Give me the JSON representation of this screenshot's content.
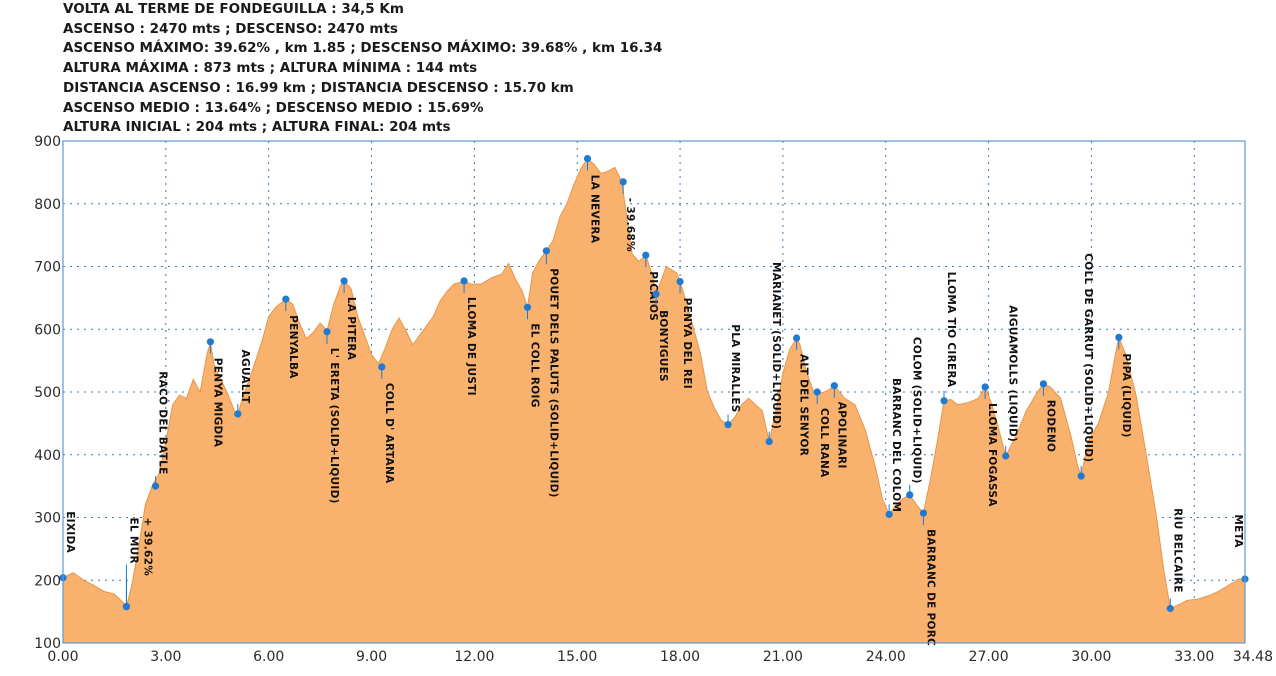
{
  "stats": [
    "VOLTA AL TERME DE FONDEGUILLA  : 34,5 Km",
    "ASCENSO : 2470 mts ; DESCENSO: 2470 mts",
    "ASCENSO MÁXIMO: 39.62% , km 1.85 ; DESCENSO MÁXIMO: 39.68% , km 16.34",
    "ALTURA MÁXIMA : 873 mts ; ALTURA MÍNIMA : 144 mts",
    "DISTANCIA ASCENSO :  16.99 km ; DISTANCIA DESCENSO : 15.70 km",
    "ASCENSO MEDIO : 13.64% ; DESCENSO MEDIO : 15.69%",
    "ALTURA INICIAL : 204 mts ; ALTURA FINAL: 204 mts"
  ],
  "chart_data": {
    "type": "area",
    "xlim": [
      0,
      34.48
    ],
    "ylim": [
      100,
      900
    ],
    "x_ticks": [
      0,
      3,
      6,
      9,
      12,
      15,
      18,
      21,
      24,
      27,
      30,
      33,
      34.48
    ],
    "x_tick_labels": [
      "0.00",
      "3.00",
      "6.00",
      "9.00",
      "12.00",
      "15.00",
      "18.00",
      "21.00",
      "24.00",
      "27.00",
      "30.00",
      "33.00",
      "34.48"
    ],
    "y_ticks": [
      100,
      200,
      300,
      400,
      500,
      600,
      700,
      800,
      900
    ],
    "y_tick_labels": [
      "100",
      "200",
      "300",
      "400",
      "500",
      "600",
      "700",
      "800",
      "900"
    ],
    "grid": true,
    "colors": {
      "fill": "#f9b26e",
      "stroke": "#e8954a",
      "axis": "#5b9bd5",
      "grid": "#3a78b8",
      "marker": "#1f7ad1"
    },
    "profile": [
      [
        0.0,
        204
      ],
      [
        0.3,
        212
      ],
      [
        0.6,
        200
      ],
      [
        0.9,
        192
      ],
      [
        1.2,
        182
      ],
      [
        1.5,
        178
      ],
      [
        1.8,
        162
      ],
      [
        1.85,
        158
      ],
      [
        2.0,
        190
      ],
      [
        2.2,
        250
      ],
      [
        2.4,
        320
      ],
      [
        2.6,
        350
      ],
      [
        2.8,
        370
      ],
      [
        3.0,
        420
      ],
      [
        3.2,
        480
      ],
      [
        3.4,
        495
      ],
      [
        3.6,
        490
      ],
      [
        3.8,
        520
      ],
      [
        4.0,
        500
      ],
      [
        4.2,
        560
      ],
      [
        4.3,
        580
      ],
      [
        4.4,
        545
      ],
      [
        4.6,
        520
      ],
      [
        4.8,
        498
      ],
      [
        5.0,
        470
      ],
      [
        5.1,
        465
      ],
      [
        5.3,
        500
      ],
      [
        5.5,
        530
      ],
      [
        5.8,
        580
      ],
      [
        6.0,
        620
      ],
      [
        6.2,
        635
      ],
      [
        6.5,
        648
      ],
      [
        6.7,
        640
      ],
      [
        6.9,
        610
      ],
      [
        7.1,
        585
      ],
      [
        7.3,
        595
      ],
      [
        7.5,
        610
      ],
      [
        7.7,
        598
      ],
      [
        7.9,
        640
      ],
      [
        8.1,
        670
      ],
      [
        8.2,
        677
      ],
      [
        8.4,
        665
      ],
      [
        8.6,
        620
      ],
      [
        8.8,
        590
      ],
      [
        9.0,
        560
      ],
      [
        9.2,
        545
      ],
      [
        9.4,
        570
      ],
      [
        9.6,
        600
      ],
      [
        9.8,
        618
      ],
      [
        10.0,
        598
      ],
      [
        10.2,
        575
      ],
      [
        10.4,
        590
      ],
      [
        10.6,
        605
      ],
      [
        10.8,
        620
      ],
      [
        11.0,
        645
      ],
      [
        11.2,
        660
      ],
      [
        11.4,
        672
      ],
      [
        11.6,
        675
      ],
      [
        11.7,
        677
      ],
      [
        11.9,
        672
      ],
      [
        12.2,
        672
      ],
      [
        12.5,
        682
      ],
      [
        12.8,
        688
      ],
      [
        13.0,
        705
      ],
      [
        13.2,
        680
      ],
      [
        13.4,
        660
      ],
      [
        13.55,
        635
      ],
      [
        13.7,
        690
      ],
      [
        13.9,
        710
      ],
      [
        14.1,
        725
      ],
      [
        14.3,
        742
      ],
      [
        14.5,
        780
      ],
      [
        14.7,
        800
      ],
      [
        14.9,
        830
      ],
      [
        15.1,
        855
      ],
      [
        15.3,
        872
      ],
      [
        15.5,
        862
      ],
      [
        15.7,
        848
      ],
      [
        15.9,
        852
      ],
      [
        16.1,
        858
      ],
      [
        16.3,
        835
      ],
      [
        16.6,
        720
      ],
      [
        16.8,
        708
      ],
      [
        17.0,
        718
      ],
      [
        17.2,
        685
      ],
      [
        17.3,
        656
      ],
      [
        17.6,
        700
      ],
      [
        17.9,
        690
      ],
      [
        18.0,
        676
      ],
      [
        18.2,
        640
      ],
      [
        18.4,
        600
      ],
      [
        18.6,
        560
      ],
      [
        18.8,
        500
      ],
      [
        19.0,
        475
      ],
      [
        19.2,
        455
      ],
      [
        19.4,
        448
      ],
      [
        19.6,
        460
      ],
      [
        19.8,
        480
      ],
      [
        20.0,
        490
      ],
      [
        20.2,
        480
      ],
      [
        20.4,
        470
      ],
      [
        20.6,
        421
      ],
      [
        20.8,
        470
      ],
      [
        21.0,
        530
      ],
      [
        21.2,
        568
      ],
      [
        21.4,
        586
      ],
      [
        21.5,
        575
      ],
      [
        21.7,
        530
      ],
      [
        21.9,
        500
      ],
      [
        22.1,
        498
      ],
      [
        22.3,
        502
      ],
      [
        22.5,
        510
      ],
      [
        22.8,
        490
      ],
      [
        23.1,
        480
      ],
      [
        23.4,
        440
      ],
      [
        23.7,
        380
      ],
      [
        23.9,
        330
      ],
      [
        24.1,
        305
      ],
      [
        24.3,
        320
      ],
      [
        24.5,
        330
      ],
      [
        24.7,
        336
      ],
      [
        24.9,
        320
      ],
      [
        25.1,
        307
      ],
      [
        25.3,
        360
      ],
      [
        25.5,
        420
      ],
      [
        25.7,
        486
      ],
      [
        25.9,
        488
      ],
      [
        26.1,
        480
      ],
      [
        26.4,
        483
      ],
      [
        26.7,
        490
      ],
      [
        26.9,
        508
      ],
      [
        27.1,
        480
      ],
      [
        27.3,
        440
      ],
      [
        27.5,
        398
      ],
      [
        27.8,
        430
      ],
      [
        28.1,
        470
      ],
      [
        28.4,
        498
      ],
      [
        28.6,
        513
      ],
      [
        28.8,
        508
      ],
      [
        29.1,
        490
      ],
      [
        29.4,
        430
      ],
      [
        29.6,
        382
      ],
      [
        29.7,
        366
      ],
      [
        29.9,
        420
      ],
      [
        30.2,
        450
      ],
      [
        30.5,
        500
      ],
      [
        30.7,
        560
      ],
      [
        30.8,
        587
      ],
      [
        31.0,
        560
      ],
      [
        31.3,
        495
      ],
      [
        31.6,
        400
      ],
      [
        31.9,
        300
      ],
      [
        32.1,
        220
      ],
      [
        32.3,
        155
      ],
      [
        32.5,
        160
      ],
      [
        32.8,
        168
      ],
      [
        33.1,
        170
      ],
      [
        33.4,
        175
      ],
      [
        33.7,
        182
      ],
      [
        34.0,
        192
      ],
      [
        34.3,
        202
      ],
      [
        34.48,
        202
      ]
    ],
    "waypoints": [
      {
        "label": "EIXIDA",
        "x": 0.0,
        "y": 204
      },
      {
        "label": "EL MUR",
        "x": 1.85,
        "y": 158
      },
      {
        "label": "+ 39.62%",
        "x": 1.85,
        "y": 158
      },
      {
        "label": "RACÓ DEL BATLE",
        "x": 2.7,
        "y": 350
      },
      {
        "label": "PENYA MIGDIA",
        "x": 4.3,
        "y": 580
      },
      {
        "label": "AGUALLT",
        "x": 5.1,
        "y": 465
      },
      {
        "label": "PENYALBA",
        "x": 6.5,
        "y": 648
      },
      {
        "label": "L' ERETA (SOLID+LIQUID)",
        "x": 7.7,
        "y": 596
      },
      {
        "label": "LA PITERA",
        "x": 8.2,
        "y": 677
      },
      {
        "label": "COLL D' ARTANA",
        "x": 9.3,
        "y": 540
      },
      {
        "label": "LLOMA DE JUSTI",
        "x": 11.7,
        "y": 677
      },
      {
        "label": "EL COLL ROIG",
        "x": 13.55,
        "y": 635
      },
      {
        "label": "POUET DELS PALUTS (SOLID+LIQUID)",
        "x": 14.1,
        "y": 725
      },
      {
        "label": "LA NEVERA",
        "x": 15.3,
        "y": 872
      },
      {
        "label": "- 39.68%",
        "x": 16.34,
        "y": 835
      },
      {
        "label": "PICAIOS",
        "x": 17.0,
        "y": 718
      },
      {
        "label": "BONYIGUES",
        "x": 17.3,
        "y": 656
      },
      {
        "label": "PENYA DEL REI",
        "x": 18.0,
        "y": 676
      },
      {
        "label": "PLA MIRALLES",
        "x": 19.4,
        "y": 448
      },
      {
        "label": "MARIANET (SOLID+LIQUID)",
        "x": 20.6,
        "y": 421
      },
      {
        "label": "ALT DEL SENYOR",
        "x": 21.4,
        "y": 586
      },
      {
        "label": "COLL RANA",
        "x": 22.0,
        "y": 500
      },
      {
        "label": "APOLINARI",
        "x": 22.5,
        "y": 510
      },
      {
        "label": "BARRANC DEL COLOM",
        "x": 24.1,
        "y": 305
      },
      {
        "label": "COLOM (SOLID+LIQUID)",
        "x": 24.7,
        "y": 336
      },
      {
        "label": "BARRANC DE PORC",
        "x": 25.1,
        "y": 307
      },
      {
        "label": "LLOMA TIO CIRERA",
        "x": 25.7,
        "y": 486
      },
      {
        "label": "LLOMA FOGASSA",
        "x": 26.9,
        "y": 508
      },
      {
        "label": "AIGUAMOLLS (LIQUID)",
        "x": 27.5,
        "y": 398
      },
      {
        "label": "RODENO",
        "x": 28.6,
        "y": 513
      },
      {
        "label": "COLL DE GARRUT (SOLID+LIQUID)",
        "x": 29.7,
        "y": 366
      },
      {
        "label": "PIPA (LIQUID)",
        "x": 30.8,
        "y": 587
      },
      {
        "label": "RIU BELCAIRE",
        "x": 32.3,
        "y": 155
      },
      {
        "label": "META",
        "x": 34.48,
        "y": 202
      }
    ]
  }
}
